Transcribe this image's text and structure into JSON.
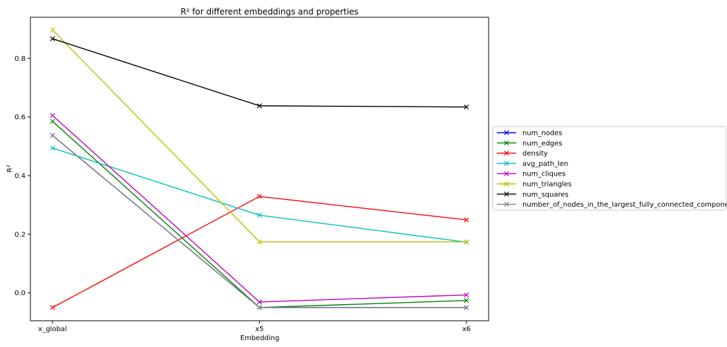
{
  "chart_data": {
    "type": "line",
    "title": "R² for different embeddings and properties",
    "xlabel": "Embedding",
    "ylabel": "R²",
    "categories": [
      "x_global",
      "x5",
      "x6"
    ],
    "ylim": [
      -0.095,
      0.94
    ],
    "yticks": [
      "0.0",
      "0.2",
      "0.4",
      "0.6",
      "0.8"
    ],
    "ytick_values": [
      0.0,
      0.2,
      0.4,
      0.6,
      0.8
    ],
    "grid": false,
    "legend_position": "center-right outside",
    "series": [
      {
        "name": "num_nodes",
        "color": "#0000ff",
        "values": [
          0.537,
          -0.05,
          -0.05
        ]
      },
      {
        "name": "num_edges",
        "color": "#008000",
        "values": [
          0.585,
          -0.05,
          -0.026
        ]
      },
      {
        "name": "density",
        "color": "#ff0000",
        "values": [
          -0.05,
          0.329,
          0.249
        ]
      },
      {
        "name": "avg_path_len",
        "color": "#00bfbf",
        "values": [
          0.494,
          0.265,
          0.173
        ]
      },
      {
        "name": "num_cliques",
        "color": "#bf00bf",
        "values": [
          0.605,
          -0.031,
          -0.007
        ]
      },
      {
        "name": "num_triangles",
        "color": "#bfbf00",
        "values": [
          0.897,
          0.174,
          0.174
        ]
      },
      {
        "name": "num_squares",
        "color": "#000000",
        "values": [
          0.867,
          0.638,
          0.634
        ]
      },
      {
        "name": "number_of_nodes_in_the_largest_fully_connected_component",
        "color": "#808080",
        "values": [
          0.537,
          -0.05,
          -0.05
        ]
      }
    ]
  }
}
